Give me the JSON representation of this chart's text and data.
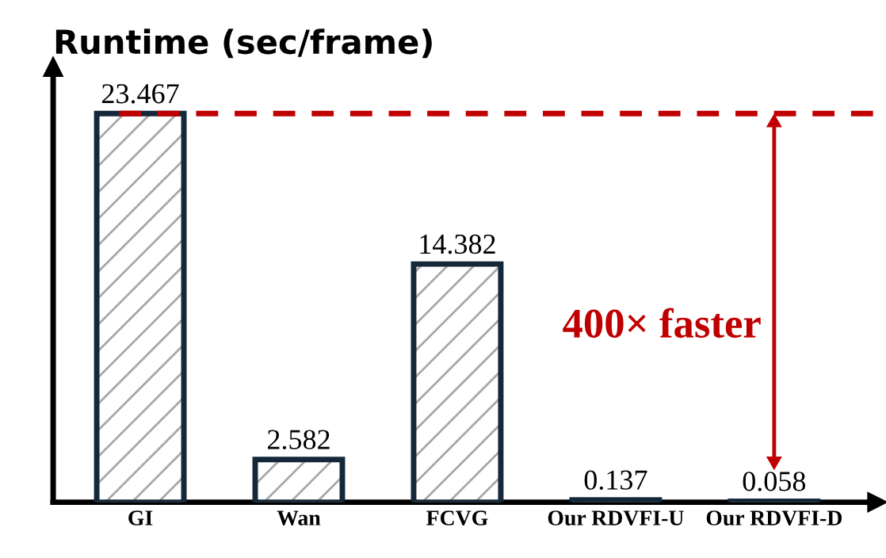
{
  "chart_data": {
    "type": "bar",
    "title": "Runtime (sec/frame)",
    "categories": [
      "GI",
      "Wan",
      "FCVG",
      "Our RDVFI-U",
      "Our RDVFI-D"
    ],
    "values": [
      23.467,
      2.582,
      14.382,
      0.137,
      0.058
    ],
    "colors": [
      "#14283a",
      "#14283a",
      "#14283a",
      "#14283a",
      "#14283a"
    ],
    "data_labels": true,
    "ref_lines": [
      {
        "axis": "y",
        "value": 23.467,
        "color": "#c00000",
        "line_style": "dashed"
      }
    ],
    "annotations": [
      "400× faster"
    ],
    "grid": false
  }
}
